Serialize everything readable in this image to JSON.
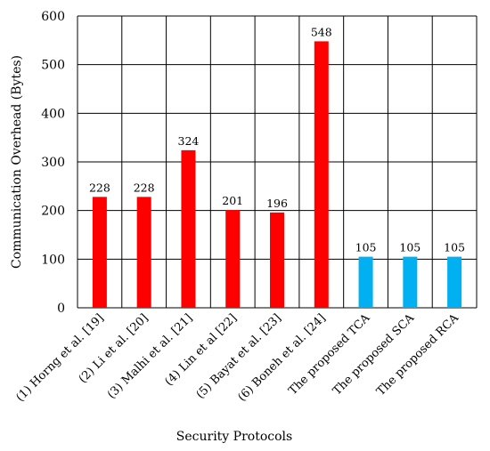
{
  "chart_data": {
    "type": "bar",
    "title": "",
    "xlabel": "Security Protocols",
    "ylabel": "Communication Overhead (Bytes)",
    "ylim": [
      0,
      600
    ],
    "yticks": [
      0,
      100,
      200,
      300,
      400,
      500,
      600
    ],
    "grid": true,
    "legend": "none",
    "categories": [
      "(1) Horng et al. [19]",
      "(2) Li et al. [20]",
      "(3) Malhi et al. [21]",
      "(4) Lin et al [22]",
      "(5) Bayat et al. [23]",
      "(6) Boneh et al. [24]",
      "The proposed TCA",
      "The proposed SCA",
      "The proposed RCA"
    ],
    "values": [
      228,
      228,
      324,
      201,
      196,
      548,
      105,
      105,
      105
    ],
    "value_labels": [
      "228",
      "228",
      "324",
      "201",
      "196",
      "548",
      "105",
      "105",
      "105"
    ],
    "colors": [
      "#ff0000",
      "#ff0000",
      "#ff0000",
      "#ff0000",
      "#ff0000",
      "#ff0000",
      "#00b0f0",
      "#00b0f0",
      "#00b0f0"
    ]
  }
}
